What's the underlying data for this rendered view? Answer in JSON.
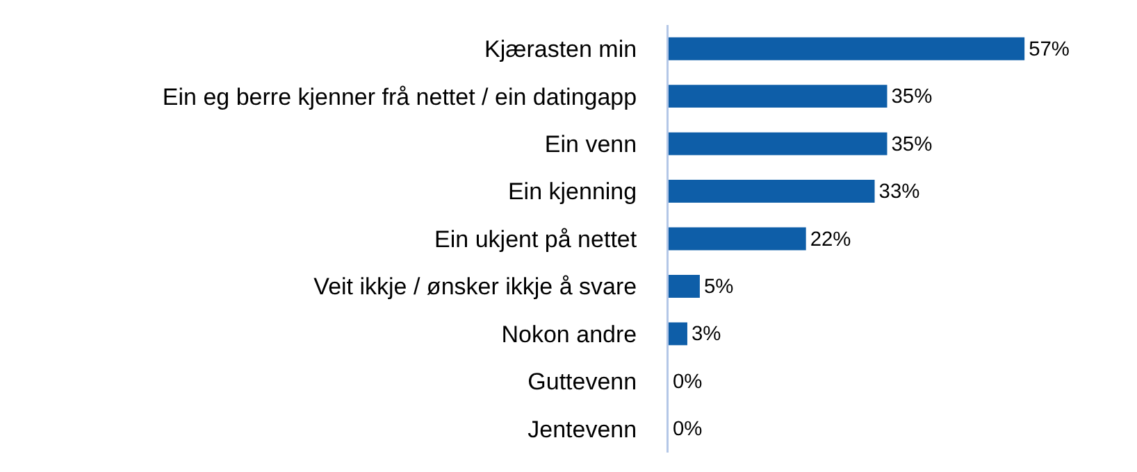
{
  "chart_data": {
    "type": "bar",
    "orientation": "horizontal",
    "categories": [
      "Kjærasten min",
      "Ein eg berre kjenner frå nettet / ein datingapp",
      "Ein venn",
      "Ein kjenning",
      "Ein ukjent på nettet",
      "Veit ikkje / ønsker ikkje å svare",
      "Nokon andre",
      "Guttevenn",
      "Jentevenn"
    ],
    "values": [
      57,
      35,
      35,
      33,
      22,
      5,
      3,
      0,
      0
    ],
    "value_labels": [
      "57%",
      "35%",
      "35%",
      "33%",
      "22%",
      "5%",
      "3%",
      "0%",
      "0%"
    ],
    "color": "#0e5ea8"
  }
}
